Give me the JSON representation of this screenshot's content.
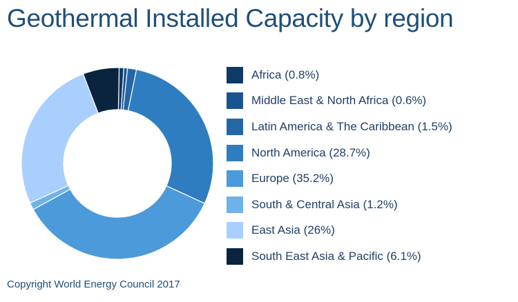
{
  "chart_data": {
    "type": "pie",
    "title": "Geothermal Installed Capacity by region",
    "footer": "Copyright World Energy Council 2017",
    "legend_position": "right",
    "series": [
      {
        "label": "Africa (0.8%)",
        "value": 0.8,
        "color": "#0e3b66"
      },
      {
        "label": "Middle East & North Africa (0.6%)",
        "value": 0.6,
        "color": "#1a5490"
      },
      {
        "label": "Latin America & The Caribbean (1.5%)",
        "value": 1.5,
        "color": "#2567a6"
      },
      {
        "label": "North America (28.7%)",
        "value": 28.7,
        "color": "#2f7dc1"
      },
      {
        "label": "Europe (35.2%)",
        "value": 35.2,
        "color": "#4c9ad9"
      },
      {
        "label": "South & Central Asia (1.2%)",
        "value": 1.2,
        "color": "#6eb2ea"
      },
      {
        "label": "East Asia (26%)",
        "value": 26,
        "color": "#a9cfff"
      },
      {
        "label": "South East Asia & Pacific (6.1%)",
        "value": 6.1,
        "color": "#0a2440"
      }
    ]
  }
}
